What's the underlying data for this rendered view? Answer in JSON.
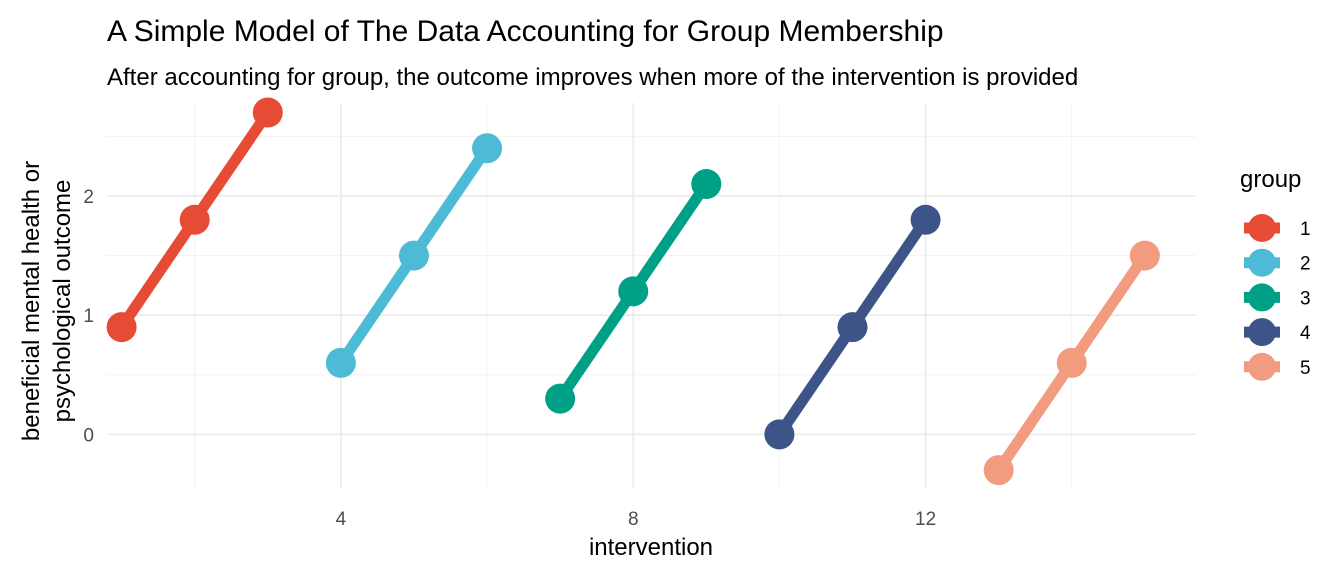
{
  "chart_data": {
    "type": "line",
    "title": "A Simple Model of The Data Accounting for Group Membership",
    "subtitle": "After accounting for group, the outcome improves when more of the intervention is provided",
    "xlabel": "intervention",
    "ylabel_lines": [
      "beneficial mental health or",
      "psychological outcome"
    ],
    "xlim": [
      0.8,
      15.7
    ],
    "ylim": [
      -0.45,
      2.78
    ],
    "x_ticks": [
      4,
      8,
      12
    ],
    "x_minor": [
      2,
      6,
      10,
      14
    ],
    "y_ticks": [
      0,
      1,
      2
    ],
    "y_minor": [
      -0.5,
      0.5,
      1.5,
      2.5
    ],
    "grid": true,
    "legend": {
      "title": "group",
      "position": "right"
    },
    "series": [
      {
        "name": "1",
        "color": "#E64B35",
        "x": [
          1,
          2,
          3
        ],
        "y": [
          0.9,
          1.8,
          2.7
        ]
      },
      {
        "name": "2",
        "color": "#4DBBD5",
        "x": [
          4,
          5,
          6
        ],
        "y": [
          0.6,
          1.5,
          2.4
        ]
      },
      {
        "name": "3",
        "color": "#00A087",
        "x": [
          7,
          8,
          9
        ],
        "y": [
          0.3,
          1.2,
          2.1
        ]
      },
      {
        "name": "4",
        "color": "#3C5488",
        "x": [
          10,
          11,
          12
        ],
        "y": [
          0.0,
          0.9,
          1.8
        ]
      },
      {
        "name": "5",
        "color": "#F39B7F",
        "x": [
          13,
          14,
          15
        ],
        "y": [
          -0.3,
          0.6,
          1.5
        ]
      }
    ]
  }
}
